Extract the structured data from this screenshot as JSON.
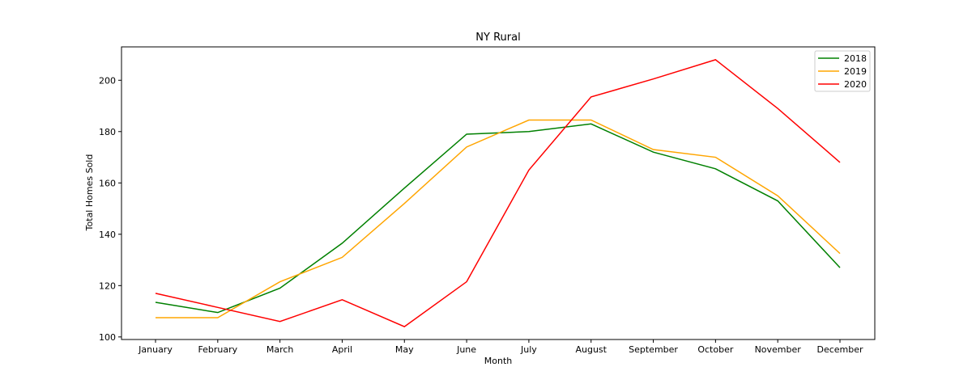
{
  "chart_data": {
    "type": "line",
    "title": "NY Rural",
    "xlabel": "Month",
    "ylabel": "Total Homes Sold",
    "categories": [
      "January",
      "February",
      "March",
      "April",
      "May",
      "June",
      "July",
      "August",
      "September",
      "October",
      "November",
      "December"
    ],
    "ylim": [
      99,
      213
    ],
    "yticks": [
      100,
      120,
      140,
      160,
      180,
      200
    ],
    "grid": false,
    "legend": "top-right",
    "series": [
      {
        "name": "2018",
        "color": "#008000",
        "values": [
          113.5,
          109.5,
          119,
          136.5,
          158,
          179,
          180,
          183,
          172,
          165.5,
          153,
          127
        ]
      },
      {
        "name": "2019",
        "color": "#ffa500",
        "values": [
          107.5,
          107.5,
          121.5,
          131,
          152,
          174,
          184.5,
          184.5,
          173,
          170,
          155,
          132.5
        ]
      },
      {
        "name": "2020",
        "color": "#ff0000",
        "values": [
          117,
          111.5,
          106,
          114.5,
          104,
          121.5,
          165,
          193.5,
          200.5,
          208,
          189,
          168
        ]
      }
    ]
  }
}
